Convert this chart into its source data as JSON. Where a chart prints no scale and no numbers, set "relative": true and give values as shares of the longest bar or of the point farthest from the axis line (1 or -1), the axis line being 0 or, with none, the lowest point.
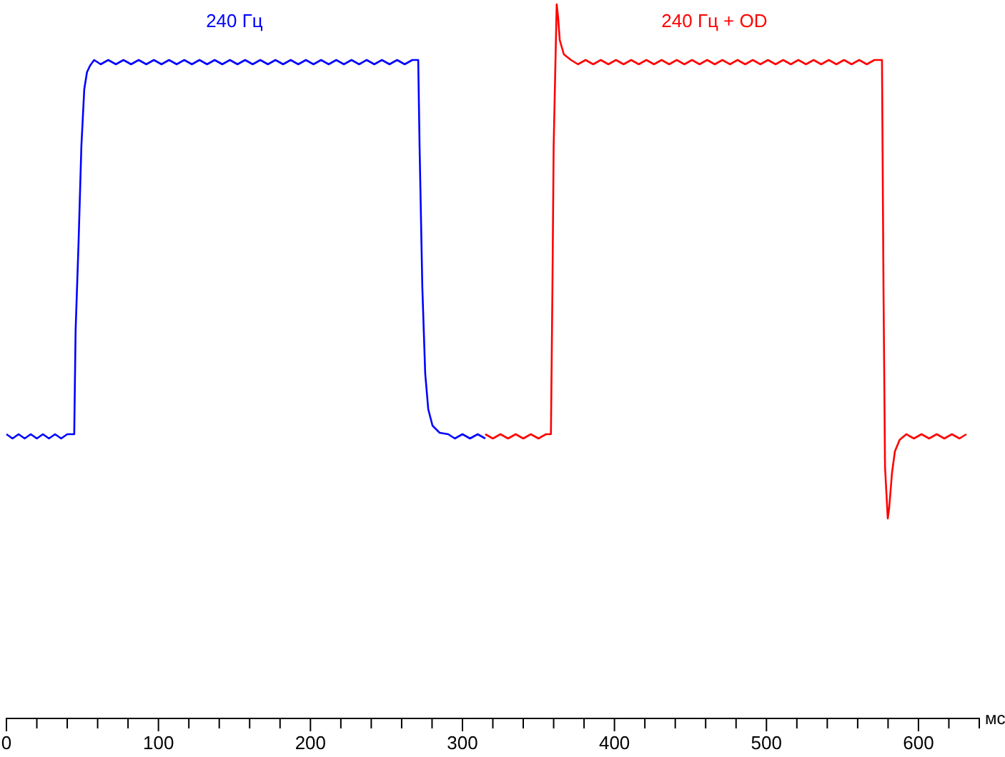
{
  "chart_data": {
    "type": "line",
    "relative": true,
    "xlabel": "мс",
    "xlim": [
      0,
      640
    ],
    "xticks": [
      0,
      {
        "value": 20,
        "label": null
      },
      {
        "value": 40,
        "label": null
      },
      {
        "value": 60,
        "label": null
      },
      {
        "value": 80,
        "label": null
      },
      100,
      {
        "value": 120,
        "label": null
      },
      {
        "value": 140,
        "label": null
      },
      {
        "value": 160,
        "label": null
      },
      {
        "value": 180,
        "label": null
      },
      200,
      {
        "value": 220,
        "label": null
      },
      {
        "value": 240,
        "label": null
      },
      {
        "value": 260,
        "label": null
      },
      {
        "value": 280,
        "label": null
      },
      300,
      {
        "value": 320,
        "label": null
      },
      {
        "value": 340,
        "label": null
      },
      {
        "value": 360,
        "label": null
      },
      {
        "value": 380,
        "label": null
      },
      400,
      {
        "value": 420,
        "label": null
      },
      {
        "value": 440,
        "label": null
      },
      {
        "value": 460,
        "label": null
      },
      {
        "value": 480,
        "label": null
      },
      500,
      {
        "value": 520,
        "label": null
      },
      {
        "value": 540,
        "label": null
      },
      {
        "value": 560,
        "label": null
      },
      {
        "value": 580,
        "label": null
      },
      600,
      {
        "value": 620,
        "label": null
      },
      {
        "value": 640,
        "label": null
      }
    ],
    "grid": false,
    "legend": false,
    "marker": "none",
    "line_style": "solid",
    "series": [
      {
        "name": "240 Гц",
        "color": "#0000ff",
        "x": [
          0,
          4,
          8,
          12,
          16,
          20,
          24,
          28,
          32,
          36,
          40,
          44.6,
          45.5,
          47.4,
          49.3,
          51.2,
          53,
          55,
          57.7,
          62,
          67,
          72,
          77,
          82,
          87,
          92,
          97,
          102,
          107,
          112,
          117,
          122,
          127,
          132,
          137,
          142,
          147,
          152,
          157,
          162,
          167,
          172,
          177,
          182,
          187,
          192,
          197,
          202,
          207,
          212,
          217,
          222,
          227,
          232,
          237,
          242,
          247,
          252,
          257,
          262,
          267,
          270.9,
          271.8,
          273.6,
          275.5,
          277.5,
          280.3,
          285,
          290.6,
          295,
          300,
          305,
          310,
          315
        ],
        "values": [
          0.398,
          0.392,
          0.398,
          0.392,
          0.398,
          0.392,
          0.398,
          0.392,
          0.398,
          0.392,
          0.398,
          0.398,
          0.543,
          0.663,
          0.801,
          0.881,
          0.905,
          0.914,
          0.922,
          0.916,
          0.922,
          0.916,
          0.922,
          0.916,
          0.922,
          0.916,
          0.922,
          0.916,
          0.922,
          0.916,
          0.922,
          0.916,
          0.922,
          0.916,
          0.922,
          0.916,
          0.922,
          0.916,
          0.922,
          0.916,
          0.922,
          0.916,
          0.922,
          0.916,
          0.922,
          0.916,
          0.922,
          0.916,
          0.922,
          0.916,
          0.922,
          0.916,
          0.922,
          0.916,
          0.922,
          0.916,
          0.922,
          0.916,
          0.922,
          0.916,
          0.922,
          0.922,
          0.801,
          0.604,
          0.483,
          0.433,
          0.41,
          0.4,
          0.398,
          0.392,
          0.398,
          0.392,
          0.398,
          0.392
        ]
      },
      {
        "name": "240 Гц + OD",
        "color": "#ff0000",
        "x": [
          315,
          320,
          325,
          330,
          335,
          340,
          345,
          350,
          355,
          358.2,
          359.2,
          360,
          361,
          362,
          363,
          364,
          366.7,
          371.4,
          376,
          381,
          386,
          391,
          396,
          401,
          406,
          411,
          416,
          421,
          426,
          431,
          436,
          441,
          446,
          451,
          456,
          461,
          466,
          471,
          476,
          481,
          486,
          491,
          496,
          501,
          506,
          511,
          516,
          521,
          526,
          531,
          536,
          541,
          546,
          551,
          556,
          561,
          566,
          571,
          575,
          576,
          577,
          578,
          579.8,
          580.7,
          582.6,
          584.5,
          587.6,
          592,
          597,
          602,
          607,
          612,
          617,
          622,
          627,
          631.5
        ],
        "values": [
          0.398,
          0.392,
          0.398,
          0.392,
          0.398,
          0.392,
          0.398,
          0.392,
          0.398,
          0.398,
          0.602,
          0.801,
          0.901,
          1,
          0.98,
          0.95,
          0.93,
          0.922,
          0.916,
          0.922,
          0.916,
          0.922,
          0.916,
          0.922,
          0.916,
          0.922,
          0.916,
          0.922,
          0.916,
          0.922,
          0.916,
          0.922,
          0.916,
          0.922,
          0.916,
          0.922,
          0.916,
          0.922,
          0.916,
          0.922,
          0.916,
          0.922,
          0.916,
          0.922,
          0.916,
          0.922,
          0.916,
          0.922,
          0.916,
          0.922,
          0.916,
          0.922,
          0.916,
          0.922,
          0.916,
          0.922,
          0.916,
          0.922,
          0.922,
          0.922,
          0.602,
          0.352,
          0.28,
          0.294,
          0.344,
          0.374,
          0.39,
          0.398,
          0.392,
          0.398,
          0.392,
          0.398,
          0.392,
          0.398,
          0.392,
          0.398
        ]
      }
    ]
  }
}
